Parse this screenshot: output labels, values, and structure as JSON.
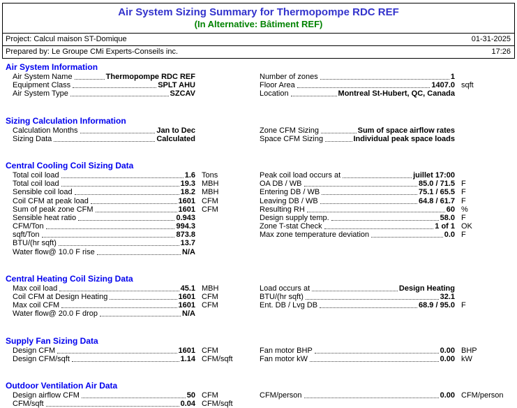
{
  "header": {
    "title": "Air System Sizing Summary for Thermopompe RDC REF",
    "subtitle": "(In Alternative: Bâtiment REF)",
    "project": "Project: Calcul maison ST-Domique",
    "date": "01-31-2025",
    "prepared_by": "Prepared by: Le Groupe CMi Experts-Conseils inc.",
    "time": "17:26"
  },
  "colors": {
    "title_blue": "#3333cc",
    "subtitle_green": "#008200",
    "section_blue": "#0000ee"
  },
  "sections": [
    {
      "id": "air-system-information",
      "title": "Air System Information",
      "left": [
        {
          "label": "Air System Name",
          "value": "Thermopompe RDC REF",
          "unit": ""
        },
        {
          "label": "Equipment Class",
          "value": "SPLT AHU",
          "unit": ""
        },
        {
          "label": "Air System Type",
          "value": "SZCAV",
          "unit": ""
        }
      ],
      "right": [
        {
          "label": "Number of zones",
          "value": "1",
          "unit": ""
        },
        {
          "label": "Floor Area",
          "value": "1407.0",
          "unit": "sqft"
        },
        {
          "label": "Location",
          "value": "Montreal St-Hubert, QC, Canada",
          "unit": ""
        }
      ]
    },
    {
      "id": "sizing-calculation-information",
      "title": "Sizing Calculation Information",
      "left": [
        {
          "label": "Calculation Months",
          "value": "Jan to Dec",
          "unit": ""
        },
        {
          "label": "Sizing Data",
          "value": "Calculated",
          "unit": ""
        }
      ],
      "right": [
        {
          "label": "Zone CFM Sizing",
          "value": "Sum of space airflow rates",
          "unit": ""
        },
        {
          "label": "Space CFM Sizing",
          "value": "Individual peak space loads",
          "unit": ""
        }
      ]
    },
    {
      "id": "central-cooling-coil-sizing-data",
      "title": "Central Cooling Coil Sizing Data",
      "left": [
        {
          "label": "Total coil load",
          "value": "1.6",
          "unit": "Tons"
        },
        {
          "label": "Total coil load",
          "value": "19.3",
          "unit": "MBH"
        },
        {
          "label": "Sensible coil load",
          "value": "18.2",
          "unit": "MBH"
        },
        {
          "label": "Coil CFM at peak load",
          "value": "1601",
          "unit": "CFM"
        },
        {
          "label": "Sum of peak zone CFM",
          "value": "1601",
          "unit": "CFM"
        },
        {
          "label": "Sensible heat ratio",
          "value": "0.943",
          "unit": ""
        },
        {
          "label": "CFM/Ton",
          "value": "994.3",
          "unit": ""
        },
        {
          "label": "sqft/Ton",
          "value": "873.8",
          "unit": ""
        },
        {
          "label": "BTU/(hr sqft)",
          "value": "13.7",
          "unit": ""
        },
        {
          "label": "Water flow@ 10.0 F rise",
          "value": "N/A",
          "unit": ""
        }
      ],
      "right": [
        {
          "label": "Peak coil load occurs at",
          "value": "juillet 17:00",
          "unit": ""
        },
        {
          "label": "OA DB / WB",
          "value": "85.0 / 71.5",
          "unit": "F"
        },
        {
          "label": "Entering DB / WB",
          "value": "75.1 / 65.5",
          "unit": "F"
        },
        {
          "label": "Leaving DB / WB",
          "value": "64.8 / 61.7",
          "unit": "F"
        },
        {
          "label": "Resulting RH",
          "value": "60",
          "unit": "%"
        },
        {
          "label": "Design supply temp.",
          "value": "58.0",
          "unit": "F"
        },
        {
          "label": "Zone T-stat Check",
          "value": "1 of 1",
          "unit": "OK"
        },
        {
          "label": "Max zone temperature deviation",
          "value": "0.0",
          "unit": "F"
        }
      ]
    },
    {
      "id": "central-heating-coil-sizing-data",
      "title": "Central Heating Coil Sizing Data",
      "left": [
        {
          "label": "Max coil load",
          "value": "45.1",
          "unit": "MBH"
        },
        {
          "label": "Coil CFM at Design Heating",
          "value": "1601",
          "unit": "CFM"
        },
        {
          "label": "Max coil CFM",
          "value": "1601",
          "unit": "CFM"
        },
        {
          "label": "Water flow@ 20.0 F drop",
          "value": "N/A",
          "unit": ""
        }
      ],
      "right": [
        {
          "label": "Load occurs at",
          "value": "Design Heating",
          "unit": ""
        },
        {
          "label": "BTU/(hr sqft)",
          "value": "32.1",
          "unit": ""
        },
        {
          "label": "Ent. DB / Lvg DB",
          "value": "68.9 / 95.0",
          "unit": "F"
        }
      ]
    },
    {
      "id": "supply-fan-sizing-data",
      "title": "Supply Fan Sizing Data",
      "left": [
        {
          "label": "Design CFM",
          "value": "1601",
          "unit": "CFM"
        },
        {
          "label": "Design CFM/sqft",
          "value": "1.14",
          "unit": "CFM/sqft"
        }
      ],
      "right": [
        {
          "label": "Fan motor BHP",
          "value": "0.00",
          "unit": "BHP"
        },
        {
          "label": "Fan motor kW",
          "value": "0.00",
          "unit": "kW"
        }
      ]
    },
    {
      "id": "outdoor-ventilation-air-data",
      "title": "Outdoor Ventilation Air Data",
      "left": [
        {
          "label": "Design airflow CFM",
          "value": "50",
          "unit": "CFM"
        },
        {
          "label": "CFM/sqft",
          "value": "0.04",
          "unit": "CFM/sqft"
        }
      ],
      "right": [
        {
          "label": "CFM/person",
          "value": "0.00",
          "unit": "CFM/person"
        }
      ]
    }
  ]
}
